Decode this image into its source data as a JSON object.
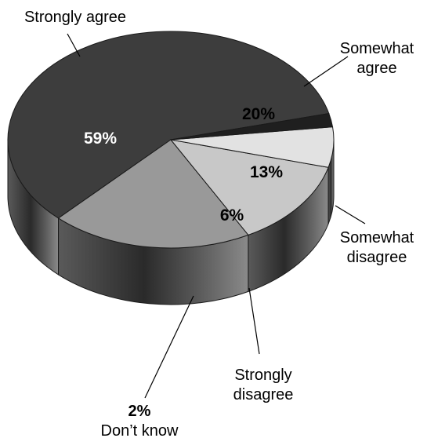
{
  "chart_data": {
    "type": "pie",
    "style": "3d",
    "slices": [
      {
        "label_lines": [
          "Strongly agree"
        ],
        "value": 59,
        "value_label": "59%",
        "color": "#3d3d3d",
        "text_color": "#ffffff"
      },
      {
        "label_lines": [
          "Somewhat",
          "agree"
        ],
        "value": 20,
        "value_label": "20%",
        "color": "#999999",
        "text_color": "#000000"
      },
      {
        "label_lines": [
          "Somewhat",
          "disagree"
        ],
        "value": 13,
        "value_label": "13%",
        "color": "#c8c8c8",
        "text_color": "#000000"
      },
      {
        "label_lines": [
          "Strongly",
          "disagree"
        ],
        "value": 6,
        "value_label": "6%",
        "color": "#e2e2e2",
        "text_color": "#000000"
      },
      {
        "label_lines": [
          "Don’t know"
        ],
        "value": 2,
        "value_label": "2%",
        "color": "#1f1f1f",
        "text_color": "#000000"
      }
    ]
  }
}
